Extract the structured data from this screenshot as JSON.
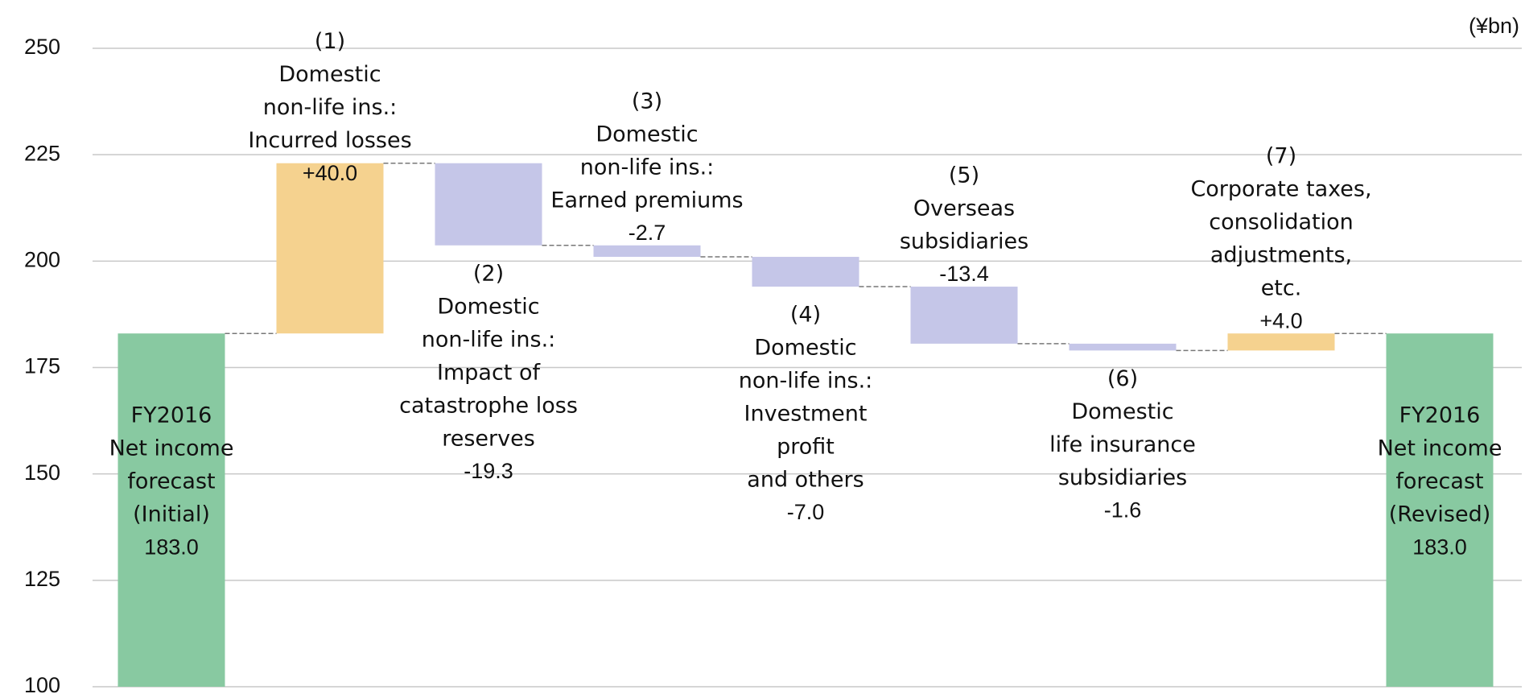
{
  "chart_data": {
    "type": "waterfall",
    "unit": "(¥bn)",
    "categories": [
      [
        "FY2016",
        "Net income",
        "forecast",
        "(Initial)"
      ],
      [
        "(1)",
        "Domestic",
        "non-life ins.:",
        "Incurred losses"
      ],
      [
        "(2)",
        "Domestic",
        "non-life ins.:",
        "Impact of",
        "catastrophe loss",
        "reserves"
      ],
      [
        "(3)",
        "Domestic",
        "non-life ins.:",
        "Earned premiums"
      ],
      [
        "(4)",
        "Domestic",
        "non-life ins.:",
        "Investment",
        "profit",
        "and others"
      ],
      [
        "(5)",
        "Overseas",
        "subsidiaries"
      ],
      [
        "(6)",
        "Domestic",
        "life insurance",
        "subsidiaries"
      ],
      [
        "(7)",
        "Corporate  taxes,",
        "consolidation",
        "adjustments,",
        "etc."
      ],
      [
        "FY2016",
        "Net income",
        "forecast",
        "(Revised)"
      ]
    ],
    "values": [
      183.0,
      40.0,
      -19.3,
      -2.7,
      -7.0,
      -13.4,
      -1.6,
      4.0,
      183.0
    ],
    "value_labels": [
      "183.0",
      "+40.0",
      "-19.3",
      "-2.7",
      "-7.0",
      "-13.4",
      "-1.6",
      "+4.0",
      "183.0"
    ],
    "is_total": [
      true,
      false,
      false,
      false,
      false,
      false,
      false,
      false,
      true
    ],
    "colors": [
      "#88c9a1",
      "#f5d28f",
      "#c5c6e8",
      "#c5c6e8",
      "#c5c6e8",
      "#c5c6e8",
      "#c5c6e8",
      "#f5d28f",
      "#88c9a1"
    ],
    "ylim": [
      100,
      250
    ],
    "yticks": [
      100,
      125,
      150,
      175,
      200,
      225,
      250
    ],
    "grid": true
  }
}
